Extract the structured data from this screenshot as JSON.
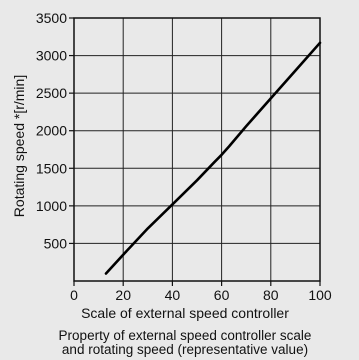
{
  "chart_data": {
    "type": "line",
    "xlabel": "Scale of external speed controller",
    "ylabel": "Rotating speed *[r/min]",
    "xlim": [
      0,
      100
    ],
    "ylim": [
      0,
      3500
    ],
    "x_ticks": [
      0,
      20,
      40,
      60,
      80,
      100
    ],
    "y_ticks": [
      500,
      1000,
      1500,
      2000,
      2500,
      3000,
      3500
    ],
    "grid": true,
    "series": [
      {
        "x": [
          13,
          20,
          30,
          40,
          50,
          57,
          60,
          63,
          70,
          80,
          90,
          100
        ],
        "y": [
          100,
          350,
          700,
          1020,
          1340,
          1580,
          1680,
          1790,
          2060,
          2430,
          2800,
          3170
        ]
      }
    ],
    "caption_line1": "Property of external speed controller scale",
    "caption_line2": "and rotating speed (representative value)"
  }
}
